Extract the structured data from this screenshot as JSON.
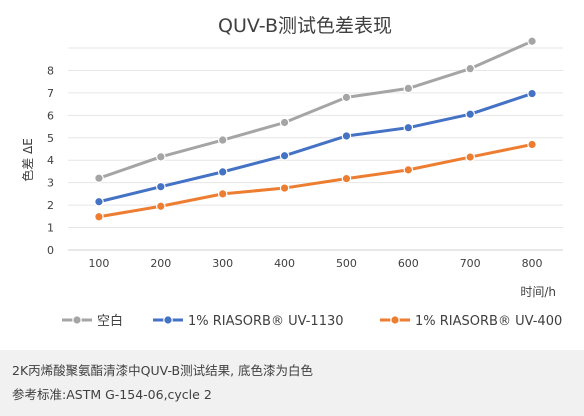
{
  "chart_data": {
    "type": "line",
    "title": "QUV-B测试色差表现",
    "xlabel": "时间/h",
    "ylabel": "色差 ΔE",
    "x": [
      100,
      200,
      300,
      400,
      500,
      600,
      700,
      800
    ],
    "ylim": [
      0,
      9
    ],
    "yticks": [
      0,
      1,
      2,
      3,
      4,
      5,
      6,
      7,
      8
    ],
    "grid": true,
    "legend_position": "bottom",
    "series": [
      {
        "name": "空白",
        "color": "#a5a5a5",
        "values": [
          3.2,
          4.15,
          4.9,
          5.68,
          6.8,
          7.2,
          8.08,
          9.3
        ]
      },
      {
        "name": "1% RIASORB® UV-1130",
        "color": "#4472c4",
        "values": [
          2.15,
          2.82,
          3.48,
          4.2,
          5.08,
          5.45,
          6.05,
          6.97
        ]
      },
      {
        "name": "1% RIASORB® UV-400",
        "color": "#ed7d31",
        "values": [
          1.48,
          1.95,
          2.5,
          2.76,
          3.18,
          3.57,
          4.14,
          4.7
        ]
      }
    ]
  },
  "caption": {
    "line1": "2K丙烯酸聚氨酯清漆中QUV-B测试结果, 底色漆为白色",
    "line2": "参考标准:ASTM G-154-06,cycle 2"
  }
}
